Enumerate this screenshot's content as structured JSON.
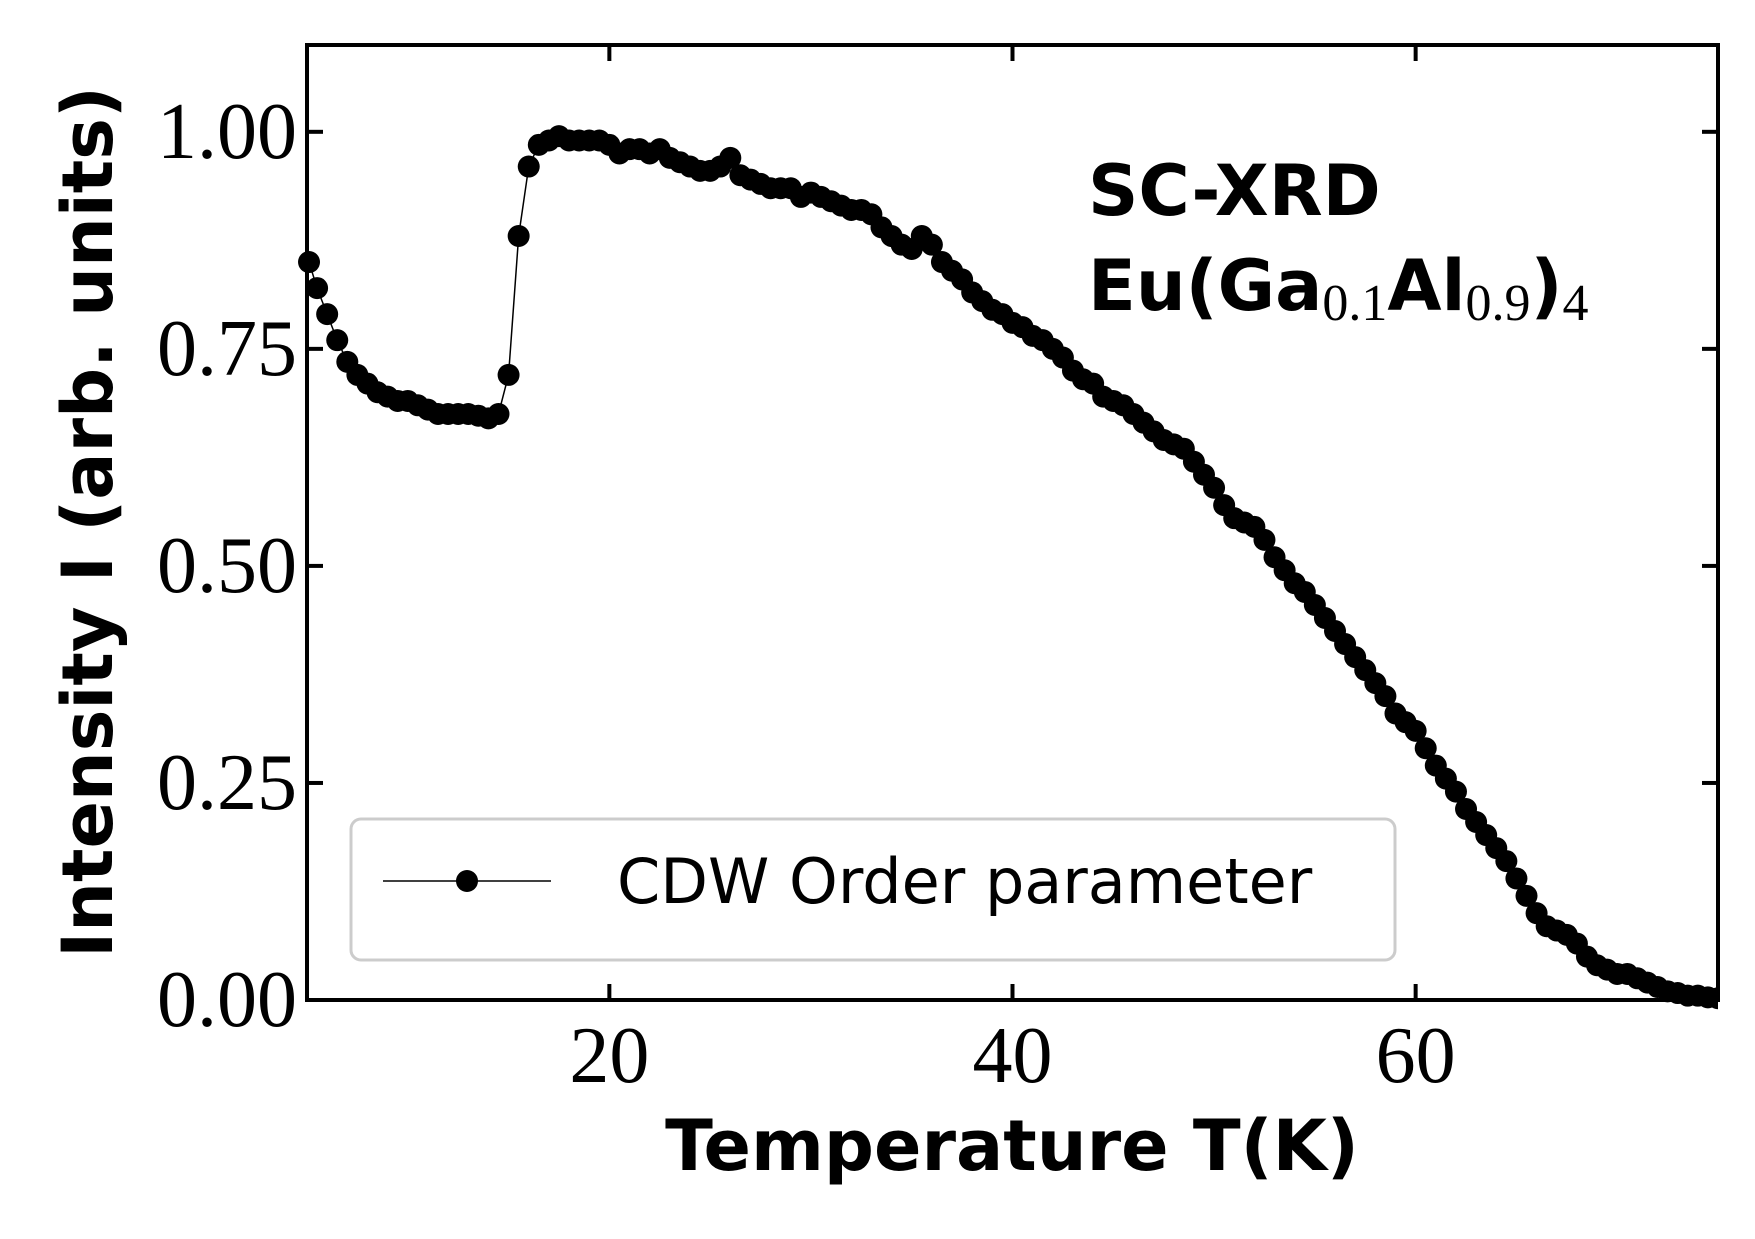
{
  "chart_data": {
    "type": "line",
    "xlabel": "Temperature T(K)",
    "ylabel": "Intensity I (arb. units)",
    "annotation": "SC-XRD",
    "annotation_formula": [
      "Eu(Ga",
      "0.1",
      "Al",
      "0.9",
      ")",
      "4"
    ],
    "xlim": [
      5,
      75
    ],
    "ylim": [
      0,
      1.1
    ],
    "xticks": [
      20,
      40,
      60
    ],
    "yticks": [
      {
        "value": 0,
        "label": "0.00"
      },
      {
        "value": 0.25,
        "label": "0.25"
      },
      {
        "value": 0.5,
        "label": "0.50"
      },
      {
        "value": 0.75,
        "label": "0.75"
      },
      {
        "value": 1.0,
        "label": "1.00"
      }
    ],
    "legend": "lower left",
    "x": [
      5.1,
      5.5,
      6,
      6.5,
      7,
      7.5,
      8,
      8.5,
      9,
      9.5,
      10,
      10.5,
      11,
      11.5,
      12,
      12.5,
      13,
      13.5,
      14,
      14.5,
      15,
      15.5,
      16,
      16.5,
      17,
      17.5,
      18,
      18.5,
      19,
      19.5,
      20,
      20.5,
      21,
      21.5,
      22,
      22.5,
      23,
      23.5,
      24,
      24.5,
      25,
      25.5,
      26,
      26.5,
      27,
      27.5,
      28,
      28.5,
      29,
      29.5,
      30,
      30.5,
      31,
      31.5,
      32,
      32.5,
      33,
      33.5,
      34,
      34.5,
      35,
      35.5,
      36,
      36.5,
      37,
      37.5,
      38,
      38.5,
      39,
      39.5,
      40,
      40.5,
      41,
      41.5,
      42,
      42.5,
      43,
      43.5,
      44,
      44.5,
      45,
      45.5,
      46,
      46.5,
      47,
      47.5,
      48,
      48.5,
      49,
      49.5,
      50,
      50.5,
      51,
      51.5,
      52,
      52.5,
      53,
      53.5,
      54,
      54.5,
      55,
      55.5,
      56,
      56.5,
      57,
      57.5,
      58,
      58.5,
      59,
      59.5,
      60,
      60.5,
      61,
      61.5,
      62,
      62.5,
      63,
      63.5,
      64,
      64.5,
      65,
      65.5,
      66,
      66.5,
      67,
      67.5,
      68,
      68.5,
      69,
      69.5,
      70,
      70.5,
      71,
      71.5,
      72,
      72.5,
      73,
      73.5,
      74,
      74.5,
      75
    ],
    "series": [
      {
        "name": "CDW Order parameter",
        "color": "#000000",
        "values": [
          0.85,
          0.82,
          0.79,
          0.76,
          0.735,
          0.72,
          0.71,
          0.7,
          0.695,
          0.69,
          0.69,
          0.685,
          0.68,
          0.675,
          0.675,
          0.675,
          0.675,
          0.673,
          0.67,
          0.675,
          0.72,
          0.88,
          0.96,
          0.985,
          0.99,
          0.995,
          0.99,
          0.99,
          0.99,
          0.99,
          0.985,
          0.975,
          0.98,
          0.98,
          0.975,
          0.98,
          0.97,
          0.965,
          0.96,
          0.955,
          0.955,
          0.96,
          0.97,
          0.95,
          0.945,
          0.94,
          0.935,
          0.935,
          0.935,
          0.925,
          0.93,
          0.925,
          0.92,
          0.915,
          0.91,
          0.91,
          0.905,
          0.89,
          0.88,
          0.87,
          0.865,
          0.88,
          0.87,
          0.85,
          0.84,
          0.83,
          0.815,
          0.805,
          0.795,
          0.79,
          0.78,
          0.775,
          0.765,
          0.76,
          0.75,
          0.74,
          0.725,
          0.715,
          0.71,
          0.695,
          0.69,
          0.685,
          0.675,
          0.665,
          0.655,
          0.645,
          0.64,
          0.635,
          0.62,
          0.605,
          0.59,
          0.57,
          0.555,
          0.55,
          0.545,
          0.53,
          0.51,
          0.495,
          0.48,
          0.47,
          0.455,
          0.44,
          0.425,
          0.41,
          0.395,
          0.38,
          0.365,
          0.35,
          0.33,
          0.32,
          0.31,
          0.29,
          0.27,
          0.255,
          0.24,
          0.22,
          0.205,
          0.19,
          0.175,
          0.16,
          0.14,
          0.12,
          0.1,
          0.085,
          0.08,
          0.075,
          0.065,
          0.05,
          0.04,
          0.035,
          0.03,
          0.03,
          0.025,
          0.02,
          0.015,
          0.01,
          0.008,
          0.005,
          0.005,
          0.003,
          0.002
        ]
      }
    ]
  }
}
